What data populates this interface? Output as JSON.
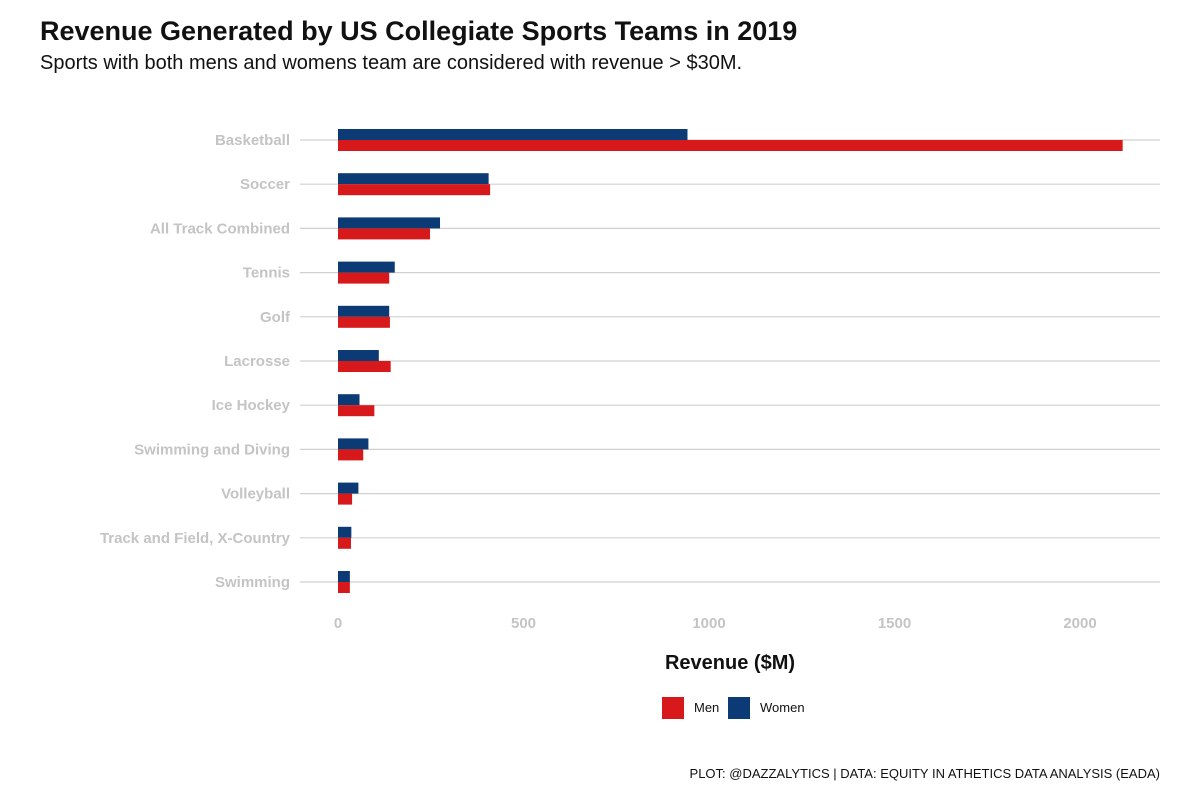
{
  "title": "Revenue Generated by US Collegiate Sports Teams in 2019",
  "subtitle": "Sports with both mens and womens team are considered with revenue > $30M.",
  "caption": "PLOT: @DAZZALYTICS | DATA: EQUITY IN ATHETICS DATA ANALYSIS (EADA)",
  "colors": {
    "men": "#d7191c",
    "women": "#0b3a75",
    "grid": "#d0d0d0"
  },
  "chart_data": {
    "type": "bar",
    "orientation": "horizontal",
    "title": "Revenue Generated by US Collegiate Sports Teams in 2019",
    "subtitle": "Sports with both mens and womens team are considered with revenue > $30M.",
    "xlabel": "Revenue ($M)",
    "ylabel": "",
    "xlim": [
      0,
      2220
    ],
    "xticks": [
      0,
      500,
      1000,
      1500,
      2000
    ],
    "grid": "horizontal",
    "legend_position": "bottom",
    "categories": [
      "Basketball",
      "Soccer",
      "All Track Combined",
      "Tennis",
      "Golf",
      "Lacrosse",
      "Ice Hockey",
      "Swimming and Diving",
      "Volleyball",
      "Track and Field, X-Country",
      "Swimming"
    ],
    "series": [
      {
        "name": "Men",
        "values": [
          2115,
          410,
          248,
          138,
          140,
          142,
          98,
          68,
          38,
          35,
          32
        ]
      },
      {
        "name": "Women",
        "values": [
          942,
          406,
          275,
          153,
          138,
          110,
          58,
          82,
          55,
          36,
          32
        ]
      }
    ]
  }
}
